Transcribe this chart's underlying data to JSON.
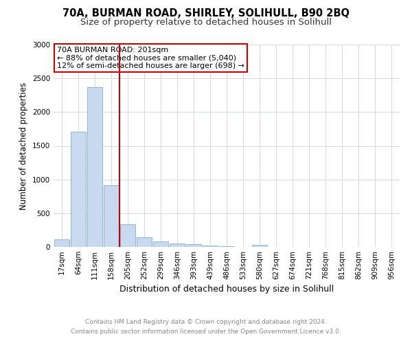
{
  "title1": "70A, BURMAN ROAD, SHIRLEY, SOLIHULL, B90 2BQ",
  "title2": "Size of property relative to detached houses in Solihull",
  "xlabel": "Distribution of detached houses by size in Solihull",
  "ylabel": "Number of detached properties",
  "bar_labels": [
    "17sqm",
    "64sqm",
    "111sqm",
    "158sqm",
    "205sqm",
    "252sqm",
    "299sqm",
    "346sqm",
    "393sqm",
    "439sqm",
    "486sqm",
    "533sqm",
    "580sqm",
    "627sqm",
    "674sqm",
    "721sqm",
    "768sqm",
    "815sqm",
    "862sqm",
    "909sqm",
    "956sqm"
  ],
  "bar_values": [
    113,
    1710,
    2370,
    920,
    340,
    145,
    80,
    55,
    40,
    18,
    10,
    0,
    28,
    0,
    0,
    0,
    0,
    0,
    0,
    0,
    0
  ],
  "bar_color": "#c9d9ef",
  "bar_edge_color": "#7aadd4",
  "vline_color": "#cc0000",
  "annotation_text": "70A BURMAN ROAD: 201sqm\n← 88% of detached houses are smaller (5,040)\n12% of semi-detached houses are larger (698) →",
  "annotation_box_color": "#cc0000",
  "ylim": [
    0,
    3000
  ],
  "yticks": [
    0,
    500,
    1000,
    1500,
    2000,
    2500,
    3000
  ],
  "footer_text": "Contains HM Land Registry data © Crown copyright and database right 2024.\nContains public sector information licensed under the Open Government Licence v3.0.",
  "bg_color": "#ffffff",
  "grid_color": "#d0d8e8",
  "title1_fontsize": 10.5,
  "title2_fontsize": 9.5,
  "xlabel_fontsize": 9,
  "ylabel_fontsize": 8.5,
  "tick_fontsize": 7.5,
  "annotation_fontsize": 8,
  "footer_fontsize": 6.5
}
